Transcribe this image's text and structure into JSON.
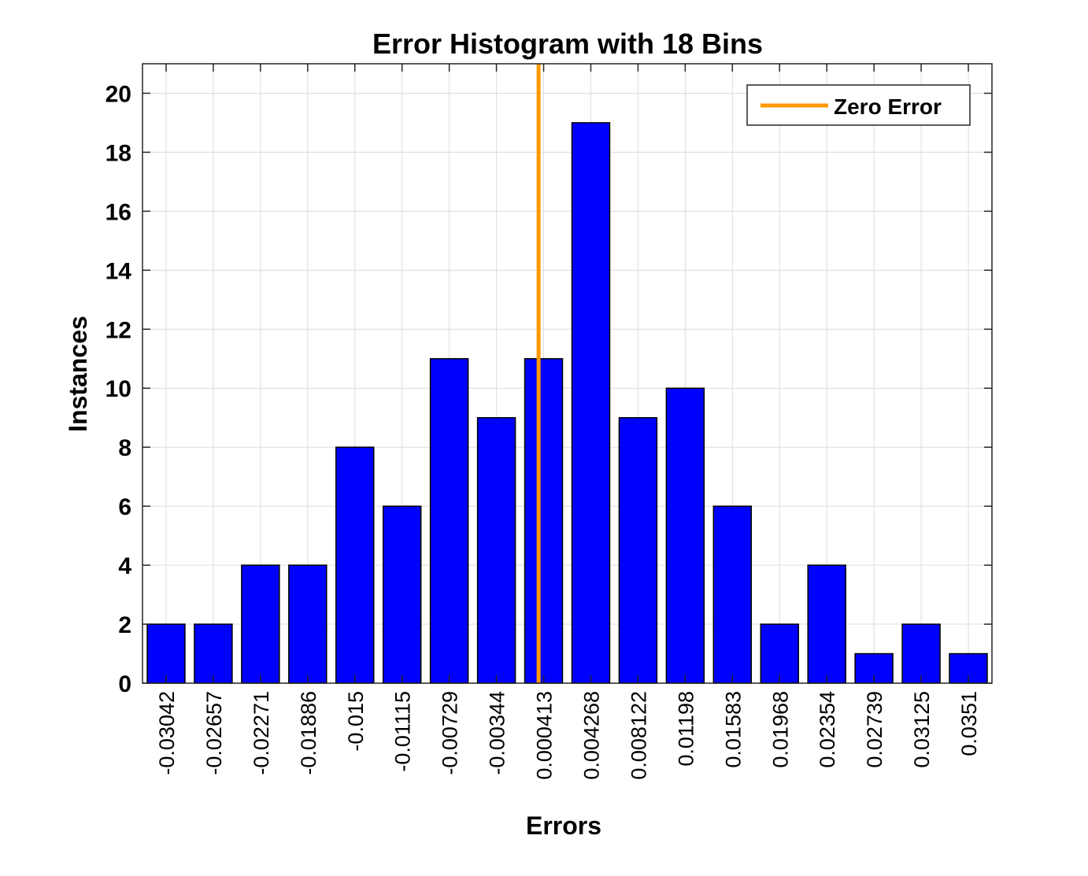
{
  "chart_data": {
    "type": "bar",
    "title": "Error Histogram with 18 Bins",
    "xlabel": "Errors",
    "ylabel": "Instances",
    "categories": [
      "-0.03042",
      "-0.02657",
      "-0.02271",
      "-0.01886",
      "-0.015",
      "-0.01115",
      "-0.00729",
      "-0.00344",
      "0.000413",
      "0.004268",
      "0.008122",
      "0.01198",
      "0.01583",
      "0.01968",
      "0.02354",
      "0.02739",
      "0.03125",
      "0.0351"
    ],
    "values": [
      2,
      2,
      4,
      4,
      8,
      6,
      11,
      9,
      11,
      19,
      9,
      10,
      6,
      2,
      4,
      1,
      2,
      1
    ],
    "ylim": [
      0,
      21
    ],
    "yticks": [
      0,
      2,
      4,
      6,
      8,
      10,
      12,
      14,
      16,
      18,
      20
    ],
    "grid": true,
    "bar_color": "#0000ff",
    "zero_line": {
      "name": "Zero Error",
      "x": 0,
      "color": "#ff9900"
    },
    "legend": {
      "position": "top-right",
      "entries": [
        "Zero Error"
      ]
    }
  }
}
